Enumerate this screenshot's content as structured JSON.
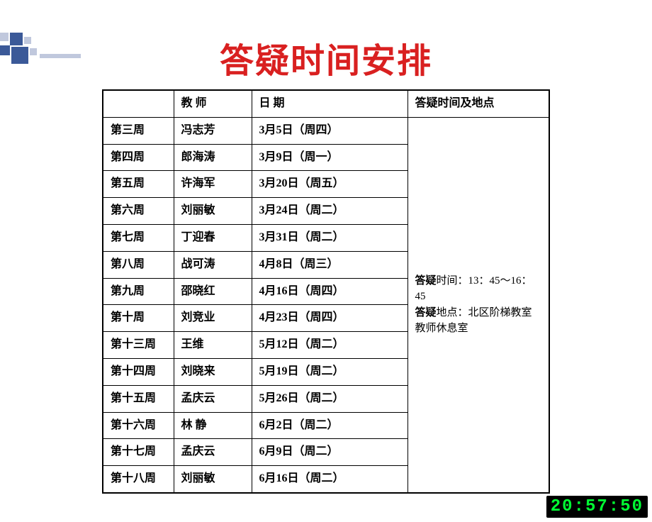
{
  "title": "答疑时间安排",
  "headers": {
    "week": "",
    "teacher": "教 师",
    "date": "日 期",
    "info": "答疑时间及地点"
  },
  "rows": [
    {
      "week": "第三周",
      "teacher": "冯志芳",
      "date": "3月5日（周四）"
    },
    {
      "week": "第四周",
      "teacher": "郎海涛",
      "date": "3月9日（周一）"
    },
    {
      "week": "第五周",
      "teacher": "许海军",
      "date": "3月20日（周五）"
    },
    {
      "week": "第六周",
      "teacher": "刘丽敏",
      "date": "3月24日（周二）"
    },
    {
      "week": "第七周",
      "teacher": "丁迎春",
      "date": "3月31日（周二）"
    },
    {
      "week": "第八周",
      "teacher": "战可涛",
      "date": "4月8日（周三）"
    },
    {
      "week": "第九周",
      "teacher": "邵晓红",
      "date": "4月16日（周四）"
    },
    {
      "week": "第十周",
      "teacher": "刘竞业",
      "date": "4月23日（周四）"
    },
    {
      "week": "第十三周",
      "teacher": "王维",
      "date": "5月12日（周二）"
    },
    {
      "week": "第十四周",
      "teacher": "刘晓来",
      "date": "5月19日（周二）"
    },
    {
      "week": "第十五周",
      "teacher": "孟庆云",
      "date": "5月26日（周二）"
    },
    {
      "week": "第十六周",
      "teacher": "林 静",
      "date": "6月2日（周二）"
    },
    {
      "week": "第十七周",
      "teacher": "孟庆云",
      "date": "6月9日（周二）"
    },
    {
      "week": "第十八周",
      "teacher": "刘丽敏",
      "date": "6月16日（周二）"
    }
  ],
  "info": {
    "time_label": "答疑时间：",
    "time_value": "13：45～16：45",
    "place_label": "答疑地点：",
    "place_value": "北区阶梯教室教师休息室"
  },
  "clock": "20:57:50",
  "deco": {
    "dark": "#3b5998",
    "light": "#c0c8dd"
  }
}
